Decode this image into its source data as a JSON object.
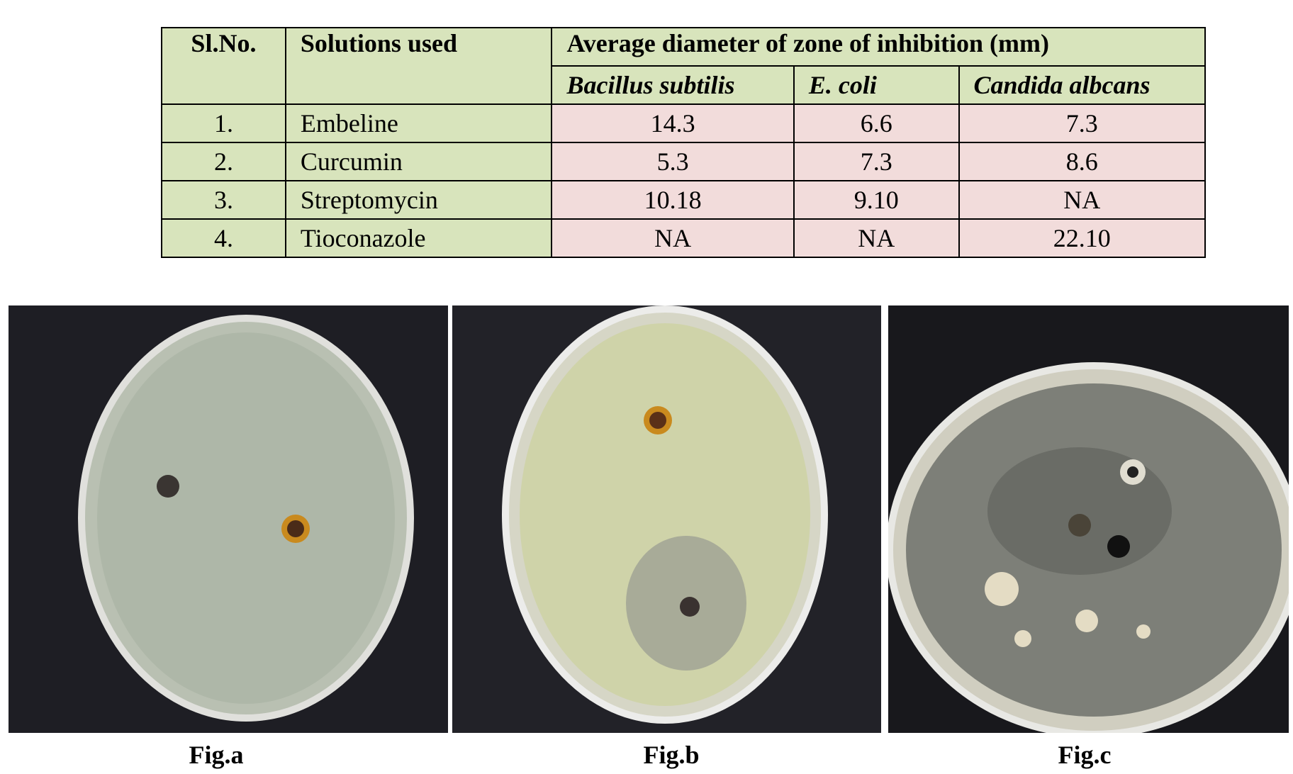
{
  "table": {
    "header": [
      "Sl.No.",
      "Solutions used",
      "Average diameter of zone of inhibition (mm)"
    ],
    "subheader": [
      "Bacillus subtilis",
      "E. coli",
      "Candida albcans"
    ],
    "rows": [
      [
        "1.",
        "Embeline",
        "14.3",
        "6.6",
        "7.3"
      ],
      [
        "2.",
        "Curcumin",
        "5.3",
        "7.3",
        "8.6"
      ],
      [
        "3.",
        "Streptomycin",
        "10.18",
        "9.10",
        "NA"
      ],
      [
        "4.",
        "Tioconazole",
        "NA",
        "NA",
        "22.10"
      ]
    ]
  },
  "figures": [
    "Fig.a",
    "Fig.b",
    "Fig.c"
  ]
}
